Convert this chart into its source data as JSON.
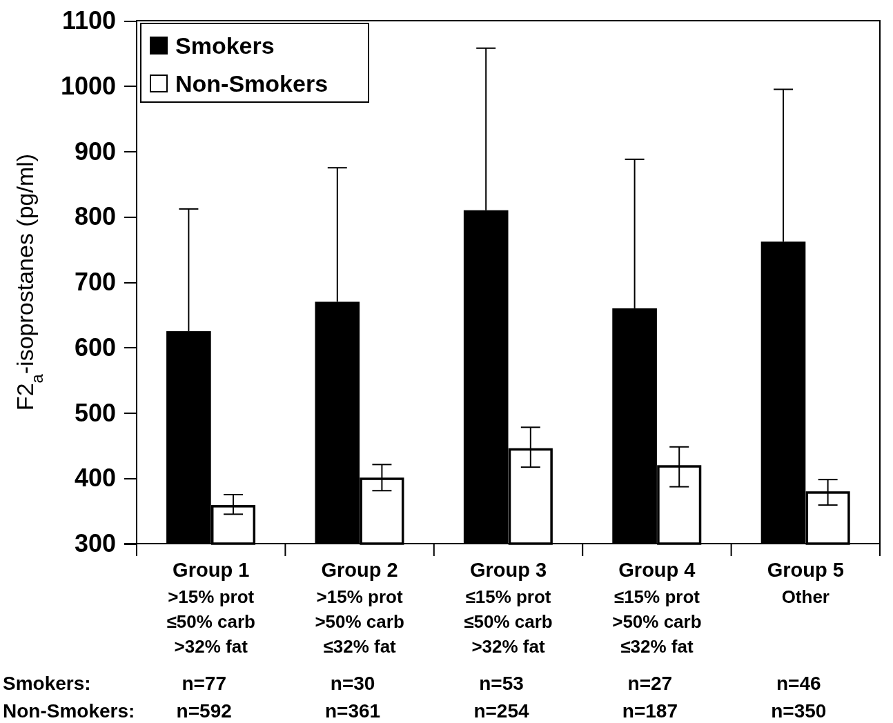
{
  "chart_data": {
    "type": "bar",
    "ylabel": "F2$_{a}$-isoprostanes (pg/ml)",
    "categories": [
      "Group 1\n>15% prot\n≤50% carb\n>32% fat",
      "Group 2\n>15% prot\n>50% carb\n≤32% fat",
      "Group 3\n≤15% prot\n≤50% carb\n>32% fat",
      "Group 4\n≤15% prot\n>50% carb\n≤32% fat",
      "Group 5\nOther"
    ],
    "series": [
      {
        "name": "Smokers",
        "color": "#000000",
        "values": [
          625,
          670,
          810,
          660,
          762
        ],
        "errors": [
          [
            625,
            812
          ],
          [
            670,
            875
          ],
          [
            810,
            1058
          ],
          [
            660,
            888
          ],
          [
            762,
            995
          ]
        ]
      },
      {
        "name": "Non-Smokers",
        "color": "#ffffff",
        "values": [
          359,
          401,
          446,
          420,
          380
        ],
        "errors": [
          [
            345,
            375
          ],
          [
            381,
            421
          ],
          [
            417,
            478
          ],
          [
            387,
            448
          ],
          [
            359,
            398
          ]
        ]
      }
    ],
    "ylim": [
      300,
      1100
    ],
    "yticks": [
      300,
      400,
      500,
      600,
      700,
      800,
      900,
      1000,
      1100
    ],
    "grid": false,
    "legend": "top left",
    "annotations": [
      "Smokers:",
      "n=77",
      "n=30",
      "n=53",
      "n=27",
      "n=46",
      "Non-Smokers:",
      "n=592",
      "n=361",
      "n=254",
      "n=187",
      "n=350"
    ]
  }
}
